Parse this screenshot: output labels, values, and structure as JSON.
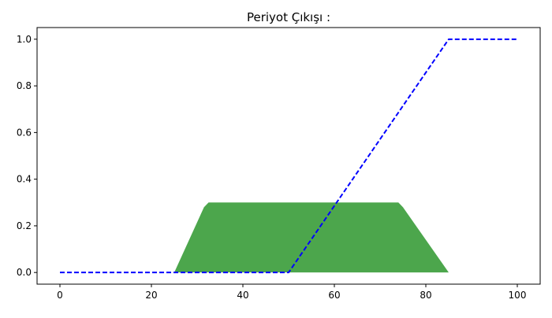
{
  "chart_data": {
    "type": "area",
    "title": "Periyot Çıkışı :",
    "xlabel": "",
    "ylabel": "",
    "xlim": [
      -5,
      105
    ],
    "ylim": [
      -0.05,
      1.05
    ],
    "x_ticks": [
      0,
      20,
      40,
      60,
      80,
      100
    ],
    "x_tick_labels": [
      "0",
      "20",
      "40",
      "60",
      "80",
      "100"
    ],
    "y_ticks": [
      0.0,
      0.2,
      0.4,
      0.6,
      0.8,
      1.0
    ],
    "y_tick_labels": [
      "0.0",
      "0.2",
      "0.4",
      "0.6",
      "0.8",
      "1.0"
    ],
    "grid": false,
    "legend": "none",
    "series": [
      {
        "kind": "filled-area",
        "color": "#4ca64c",
        "x": [
          25,
          31.5,
          32.5,
          74,
          75,
          85
        ],
        "y": [
          0.0,
          0.28,
          0.3,
          0.3,
          0.28,
          0.0
        ]
      },
      {
        "kind": "dashed-line",
        "color": "#0000ff",
        "x": [
          0,
          50,
          85,
          100
        ],
        "y": [
          0.0,
          0.0,
          1.0,
          1.0
        ]
      }
    ]
  }
}
